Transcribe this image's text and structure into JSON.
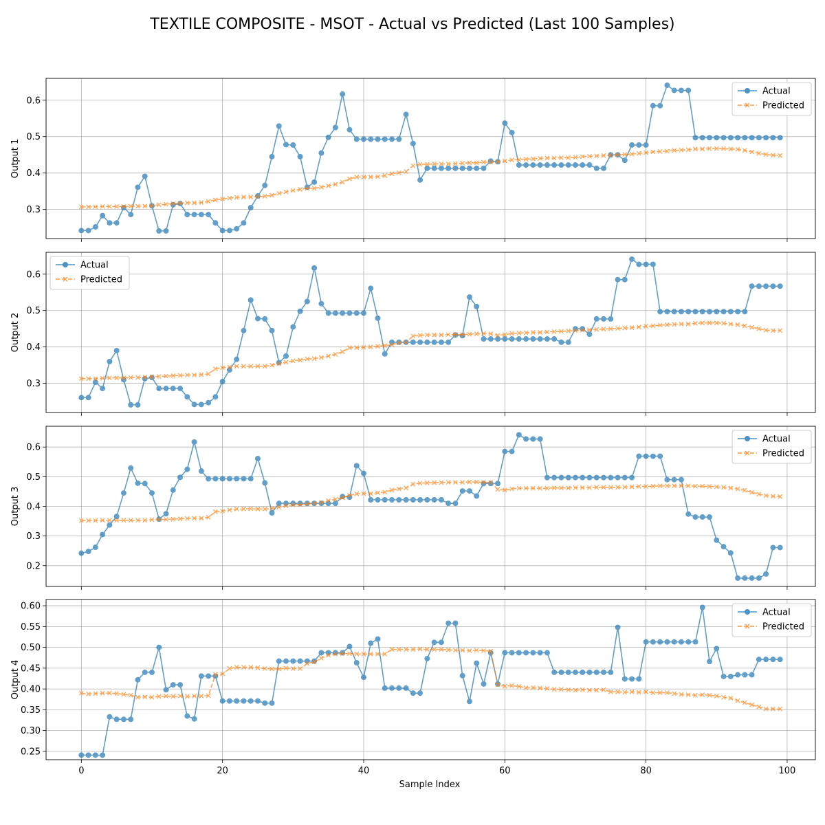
{
  "chart_data": {
    "type": "line",
    "title": "TEXTILE COMPOSITE - MSOT - Actual vs Predicted (Last 100 Samples)",
    "xlabel": "Sample Index",
    "xlim": [
      -5,
      104
    ],
    "xticks": [
      0,
      20,
      40,
      60,
      80,
      100
    ],
    "grid": true,
    "colors": {
      "actual": "#1f77b4",
      "predicted": "#ff7f0e"
    },
    "panels": [
      {
        "ylabel": "Output 1",
        "ylim": [
          0.22,
          0.66
        ],
        "yticks": [
          0.3,
          0.4,
          0.5,
          0.6
        ],
        "tick_format": 1,
        "legend": "top-right",
        "series": [
          {
            "name": "Actual",
            "values": [
              0.242,
              0.242,
              0.252,
              0.283,
              0.263,
              0.263,
              0.305,
              0.286,
              0.361,
              0.391,
              0.31,
              0.241,
              0.241,
              0.313,
              0.316,
              0.286,
              0.286,
              0.286,
              0.286,
              0.263,
              0.242,
              0.242,
              0.247,
              0.263,
              0.305,
              0.337,
              0.366,
              0.445,
              0.529,
              0.478,
              0.477,
              0.445,
              0.361,
              0.375,
              0.455,
              0.498,
              0.525,
              0.617,
              0.519,
              0.493,
              0.493,
              0.493,
              0.493,
              0.493,
              0.493,
              0.493,
              0.561,
              0.481,
              0.381,
              0.413,
              0.413,
              0.413,
              0.413,
              0.413,
              0.413,
              0.413,
              0.413,
              0.413,
              0.433,
              0.431,
              0.537,
              0.511,
              0.422,
              0.422,
              0.422,
              0.422,
              0.422,
              0.422,
              0.422,
              0.422,
              0.422,
              0.422,
              0.422,
              0.413,
              0.413,
              0.45,
              0.45,
              0.435,
              0.477,
              0.477,
              0.477,
              0.585,
              0.585,
              0.641,
              0.627,
              0.627,
              0.627,
              0.497,
              0.497,
              0.497,
              0.497,
              0.497,
              0.497,
              0.497,
              0.497,
              0.497,
              0.497,
              0.497,
              0.497,
              0.497
            ]
          },
          {
            "name": "Predicted",
            "values": [
              0.307,
              0.307,
              0.307,
              0.308,
              0.308,
              0.308,
              0.308,
              0.309,
              0.309,
              0.309,
              0.31,
              0.313,
              0.314,
              0.316,
              0.317,
              0.318,
              0.318,
              0.319,
              0.322,
              0.326,
              0.329,
              0.331,
              0.333,
              0.334,
              0.334,
              0.335,
              0.336,
              0.339,
              0.344,
              0.348,
              0.352,
              0.355,
              0.358,
              0.358,
              0.361,
              0.365,
              0.369,
              0.375,
              0.384,
              0.389,
              0.389,
              0.389,
              0.39,
              0.393,
              0.398,
              0.401,
              0.404,
              0.42,
              0.424,
              0.424,
              0.425,
              0.425,
              0.425,
              0.426,
              0.427,
              0.428,
              0.428,
              0.43,
              0.43,
              0.431,
              0.433,
              0.436,
              0.437,
              0.438,
              0.439,
              0.44,
              0.441,
              0.441,
              0.442,
              0.442,
              0.443,
              0.445,
              0.446,
              0.447,
              0.448,
              0.449,
              0.45,
              0.451,
              0.452,
              0.454,
              0.456,
              0.458,
              0.459,
              0.46,
              0.462,
              0.463,
              0.464,
              0.466,
              0.466,
              0.467,
              0.467,
              0.467,
              0.466,
              0.465,
              0.462,
              0.458,
              0.454,
              0.451,
              0.449,
              0.448
            ]
          }
        ]
      },
      {
        "ylabel": "Output 2",
        "ylim": [
          0.22,
          0.66
        ],
        "yticks": [
          0.3,
          0.4,
          0.5,
          0.6
        ],
        "tick_format": 1,
        "legend": "top-left",
        "series": [
          {
            "name": "Actual",
            "values": [
              0.261,
              0.261,
              0.303,
              0.286,
              0.36,
              0.39,
              0.31,
              0.241,
              0.241,
              0.313,
              0.316,
              0.286,
              0.286,
              0.286,
              0.286,
              0.263,
              0.242,
              0.242,
              0.247,
              0.263,
              0.305,
              0.337,
              0.366,
              0.445,
              0.529,
              0.478,
              0.477,
              0.445,
              0.357,
              0.375,
              0.455,
              0.498,
              0.525,
              0.617,
              0.519,
              0.493,
              0.493,
              0.493,
              0.493,
              0.493,
              0.493,
              0.561,
              0.479,
              0.381,
              0.413,
              0.413,
              0.413,
              0.413,
              0.413,
              0.413,
              0.413,
              0.413,
              0.413,
              0.433,
              0.431,
              0.537,
              0.511,
              0.422,
              0.422,
              0.422,
              0.422,
              0.422,
              0.422,
              0.422,
              0.422,
              0.422,
              0.422,
              0.422,
              0.413,
              0.413,
              0.45,
              0.45,
              0.435,
              0.477,
              0.477,
              0.477,
              0.585,
              0.585,
              0.641,
              0.627,
              0.627,
              0.627,
              0.497,
              0.497,
              0.497,
              0.497,
              0.497,
              0.497,
              0.497,
              0.497,
              0.497,
              0.497,
              0.497,
              0.497,
              0.497,
              0.567,
              0.567,
              0.567,
              0.567,
              0.567
            ]
          },
          {
            "name": "Predicted",
            "values": [
              0.313,
              0.313,
              0.313,
              0.314,
              0.315,
              0.315,
              0.315,
              0.316,
              0.316,
              0.317,
              0.318,
              0.319,
              0.32,
              0.321,
              0.322,
              0.323,
              0.323,
              0.324,
              0.326,
              0.34,
              0.343,
              0.345,
              0.347,
              0.347,
              0.347,
              0.347,
              0.347,
              0.35,
              0.354,
              0.358,
              0.362,
              0.364,
              0.367,
              0.368,
              0.371,
              0.375,
              0.38,
              0.387,
              0.398,
              0.398,
              0.399,
              0.4,
              0.402,
              0.404,
              0.406,
              0.411,
              0.413,
              0.43,
              0.432,
              0.433,
              0.433,
              0.433,
              0.434,
              0.434,
              0.434,
              0.435,
              0.436,
              0.437,
              0.436,
              0.432,
              0.434,
              0.437,
              0.438,
              0.439,
              0.44,
              0.44,
              0.441,
              0.442,
              0.443,
              0.444,
              0.445,
              0.446,
              0.447,
              0.448,
              0.449,
              0.45,
              0.451,
              0.452,
              0.453,
              0.455,
              0.457,
              0.458,
              0.46,
              0.461,
              0.462,
              0.463,
              0.463,
              0.465,
              0.466,
              0.466,
              0.466,
              0.465,
              0.463,
              0.461,
              0.458,
              0.454,
              0.45,
              0.446,
              0.445,
              0.445
            ]
          }
        ]
      },
      {
        "ylabel": "Output 3",
        "ylim": [
          0.13,
          0.67
        ],
        "yticks": [
          0.2,
          0.3,
          0.4,
          0.5,
          0.6
        ],
        "tick_format": 1,
        "legend": "top-right",
        "series": [
          {
            "name": "Actual",
            "values": [
              0.242,
              0.248,
              0.262,
              0.305,
              0.337,
              0.366,
              0.445,
              0.529,
              0.478,
              0.477,
              0.445,
              0.357,
              0.375,
              0.455,
              0.498,
              0.525,
              0.617,
              0.519,
              0.493,
              0.493,
              0.493,
              0.493,
              0.493,
              0.493,
              0.493,
              0.561,
              0.479,
              0.378,
              0.41,
              0.41,
              0.41,
              0.41,
              0.41,
              0.41,
              0.41,
              0.41,
              0.41,
              0.433,
              0.431,
              0.537,
              0.511,
              0.422,
              0.422,
              0.422,
              0.422,
              0.422,
              0.422,
              0.422,
              0.422,
              0.422,
              0.422,
              0.422,
              0.41,
              0.41,
              0.452,
              0.452,
              0.435,
              0.477,
              0.477,
              0.477,
              0.585,
              0.585,
              0.641,
              0.627,
              0.627,
              0.627,
              0.497,
              0.497,
              0.497,
              0.497,
              0.497,
              0.497,
              0.497,
              0.497,
              0.497,
              0.497,
              0.497,
              0.497,
              0.497,
              0.569,
              0.569,
              0.569,
              0.569,
              0.49,
              0.49,
              0.49,
              0.374,
              0.364,
              0.364,
              0.364,
              0.286,
              0.264,
              0.243,
              0.158,
              0.158,
              0.158,
              0.158,
              0.172,
              0.261,
              0.261
            ]
          },
          {
            "name": "Predicted",
            "values": [
              0.352,
              0.352,
              0.352,
              0.353,
              0.353,
              0.353,
              0.353,
              0.353,
              0.353,
              0.353,
              0.355,
              0.356,
              0.356,
              0.357,
              0.358,
              0.359,
              0.36,
              0.36,
              0.363,
              0.382,
              0.384,
              0.388,
              0.391,
              0.391,
              0.392,
              0.391,
              0.391,
              0.393,
              0.397,
              0.402,
              0.405,
              0.406,
              0.408,
              0.41,
              0.413,
              0.419,
              0.424,
              0.429,
              0.437,
              0.442,
              0.443,
              0.443,
              0.446,
              0.448,
              0.455,
              0.459,
              0.462,
              0.475,
              0.478,
              0.479,
              0.48,
              0.48,
              0.481,
              0.481,
              0.481,
              0.482,
              0.482,
              0.481,
              0.481,
              0.457,
              0.455,
              0.459,
              0.461,
              0.461,
              0.461,
              0.461,
              0.461,
              0.462,
              0.462,
              0.462,
              0.463,
              0.463,
              0.463,
              0.464,
              0.464,
              0.464,
              0.464,
              0.465,
              0.466,
              0.467,
              0.467,
              0.468,
              0.469,
              0.469,
              0.469,
              0.469,
              0.469,
              0.468,
              0.468,
              0.467,
              0.466,
              0.464,
              0.462,
              0.459,
              0.454,
              0.447,
              0.441,
              0.436,
              0.434,
              0.433
            ]
          }
        ]
      },
      {
        "ylabel": "Output 4",
        "ylim": [
          0.23,
          0.615
        ],
        "yticks": [
          0.25,
          0.3,
          0.35,
          0.4,
          0.45,
          0.5,
          0.55,
          0.6
        ],
        "tick_format": 2,
        "legend": "top-right",
        "series": [
          {
            "name": "Actual",
            "values": [
              0.241,
              0.241,
              0.241,
              0.241,
              0.333,
              0.327,
              0.327,
              0.327,
              0.422,
              0.44,
              0.44,
              0.5,
              0.398,
              0.41,
              0.41,
              0.335,
              0.328,
              0.431,
              0.431,
              0.431,
              0.371,
              0.371,
              0.371,
              0.371,
              0.371,
              0.371,
              0.366,
              0.366,
              0.467,
              0.467,
              0.467,
              0.467,
              0.467,
              0.467,
              0.487,
              0.487,
              0.487,
              0.487,
              0.502,
              0.463,
              0.428,
              0.51,
              0.52,
              0.402,
              0.402,
              0.402,
              0.402,
              0.39,
              0.39,
              0.473,
              0.512,
              0.512,
              0.558,
              0.558,
              0.432,
              0.37,
              0.462,
              0.412,
              0.487,
              0.412,
              0.487,
              0.487,
              0.487,
              0.487,
              0.487,
              0.487,
              0.487,
              0.44,
              0.44,
              0.44,
              0.44,
              0.44,
              0.44,
              0.44,
              0.44,
              0.44,
              0.548,
              0.424,
              0.424,
              0.424,
              0.513,
              0.513,
              0.513,
              0.513,
              0.513,
              0.513,
              0.513,
              0.513,
              0.596,
              0.466,
              0.497,
              0.43,
              0.43,
              0.434,
              0.434,
              0.434,
              0.471,
              0.471,
              0.471,
              0.471
            ]
          },
          {
            "name": "Predicted",
            "values": [
              0.39,
              0.388,
              0.389,
              0.39,
              0.39,
              0.389,
              0.387,
              0.385,
              0.38,
              0.381,
              0.38,
              0.382,
              0.383,
              0.382,
              0.383,
              0.382,
              0.383,
              0.383,
              0.384,
              0.435,
              0.436,
              0.449,
              0.452,
              0.452,
              0.452,
              0.451,
              0.449,
              0.448,
              0.448,
              0.45,
              0.449,
              0.449,
              0.461,
              0.465,
              0.474,
              0.481,
              0.484,
              0.485,
              0.485,
              0.484,
              0.484,
              0.484,
              0.484,
              0.484,
              0.495,
              0.495,
              0.495,
              0.495,
              0.496,
              0.495,
              0.495,
              0.495,
              0.494,
              0.493,
              0.493,
              0.492,
              0.493,
              0.492,
              0.491,
              0.41,
              0.407,
              0.408,
              0.406,
              0.403,
              0.403,
              0.402,
              0.401,
              0.399,
              0.399,
              0.398,
              0.397,
              0.398,
              0.397,
              0.397,
              0.398,
              0.393,
              0.393,
              0.392,
              0.393,
              0.392,
              0.393,
              0.391,
              0.391,
              0.391,
              0.389,
              0.387,
              0.386,
              0.385,
              0.386,
              0.385,
              0.383,
              0.38,
              0.378,
              0.372,
              0.367,
              0.362,
              0.357,
              0.352,
              0.352,
              0.352
            ]
          }
        ]
      }
    ]
  }
}
